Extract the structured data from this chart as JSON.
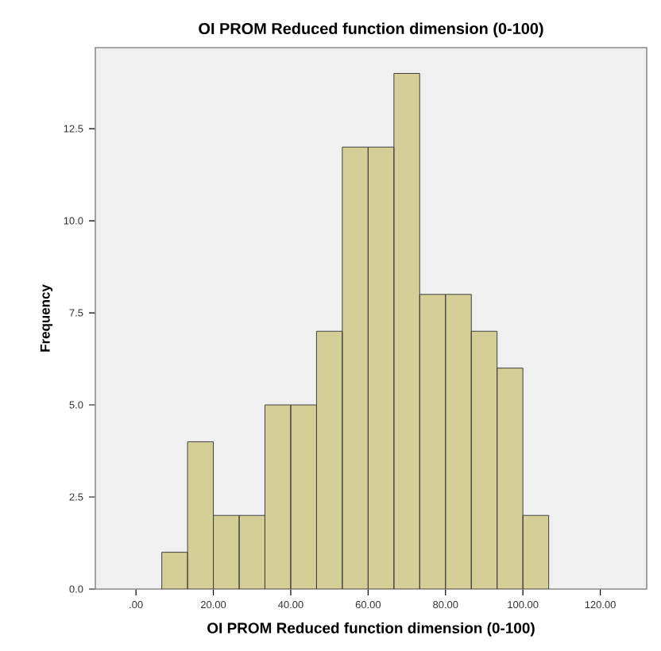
{
  "chart_data": {
    "type": "histogram",
    "title": "OI PROM Reduced function dimension (0-100)",
    "xlabel": "OI PROM Reduced function dimension (0-100)",
    "ylabel": "Frequency",
    "bins": [
      6.67,
      13.33,
      20,
      26.67,
      33.33,
      40,
      46.67,
      53.33,
      60,
      66.67,
      73.33,
      80,
      86.67,
      93.33,
      100,
      106.67
    ],
    "values": [
      1,
      4,
      2,
      2,
      5,
      5,
      7,
      12,
      12,
      14,
      8,
      8,
      7,
      6,
      2
    ],
    "color": "#d3cf97",
    "xlim": [
      -10.5,
      132
    ],
    "ylim": [
      0,
      14.7
    ],
    "xticks": [
      {
        "value": 0,
        "label": ".00"
      },
      {
        "value": 20,
        "label": "20.00"
      },
      {
        "value": 40,
        "label": "40.00"
      },
      {
        "value": 60,
        "label": "60.00"
      },
      {
        "value": 80,
        "label": "80.00"
      },
      {
        "value": 100,
        "label": "100.00"
      },
      {
        "value": 120,
        "label": "120.00"
      }
    ],
    "yticks": [
      {
        "value": 0,
        "label": "0.0"
      },
      {
        "value": 2.5,
        "label": "2.5"
      },
      {
        "value": 5,
        "label": "5.0"
      },
      {
        "value": 7.5,
        "label": "7.5"
      },
      {
        "value": 10,
        "label": "10.0"
      },
      {
        "value": 12.5,
        "label": "12.5"
      }
    ]
  }
}
